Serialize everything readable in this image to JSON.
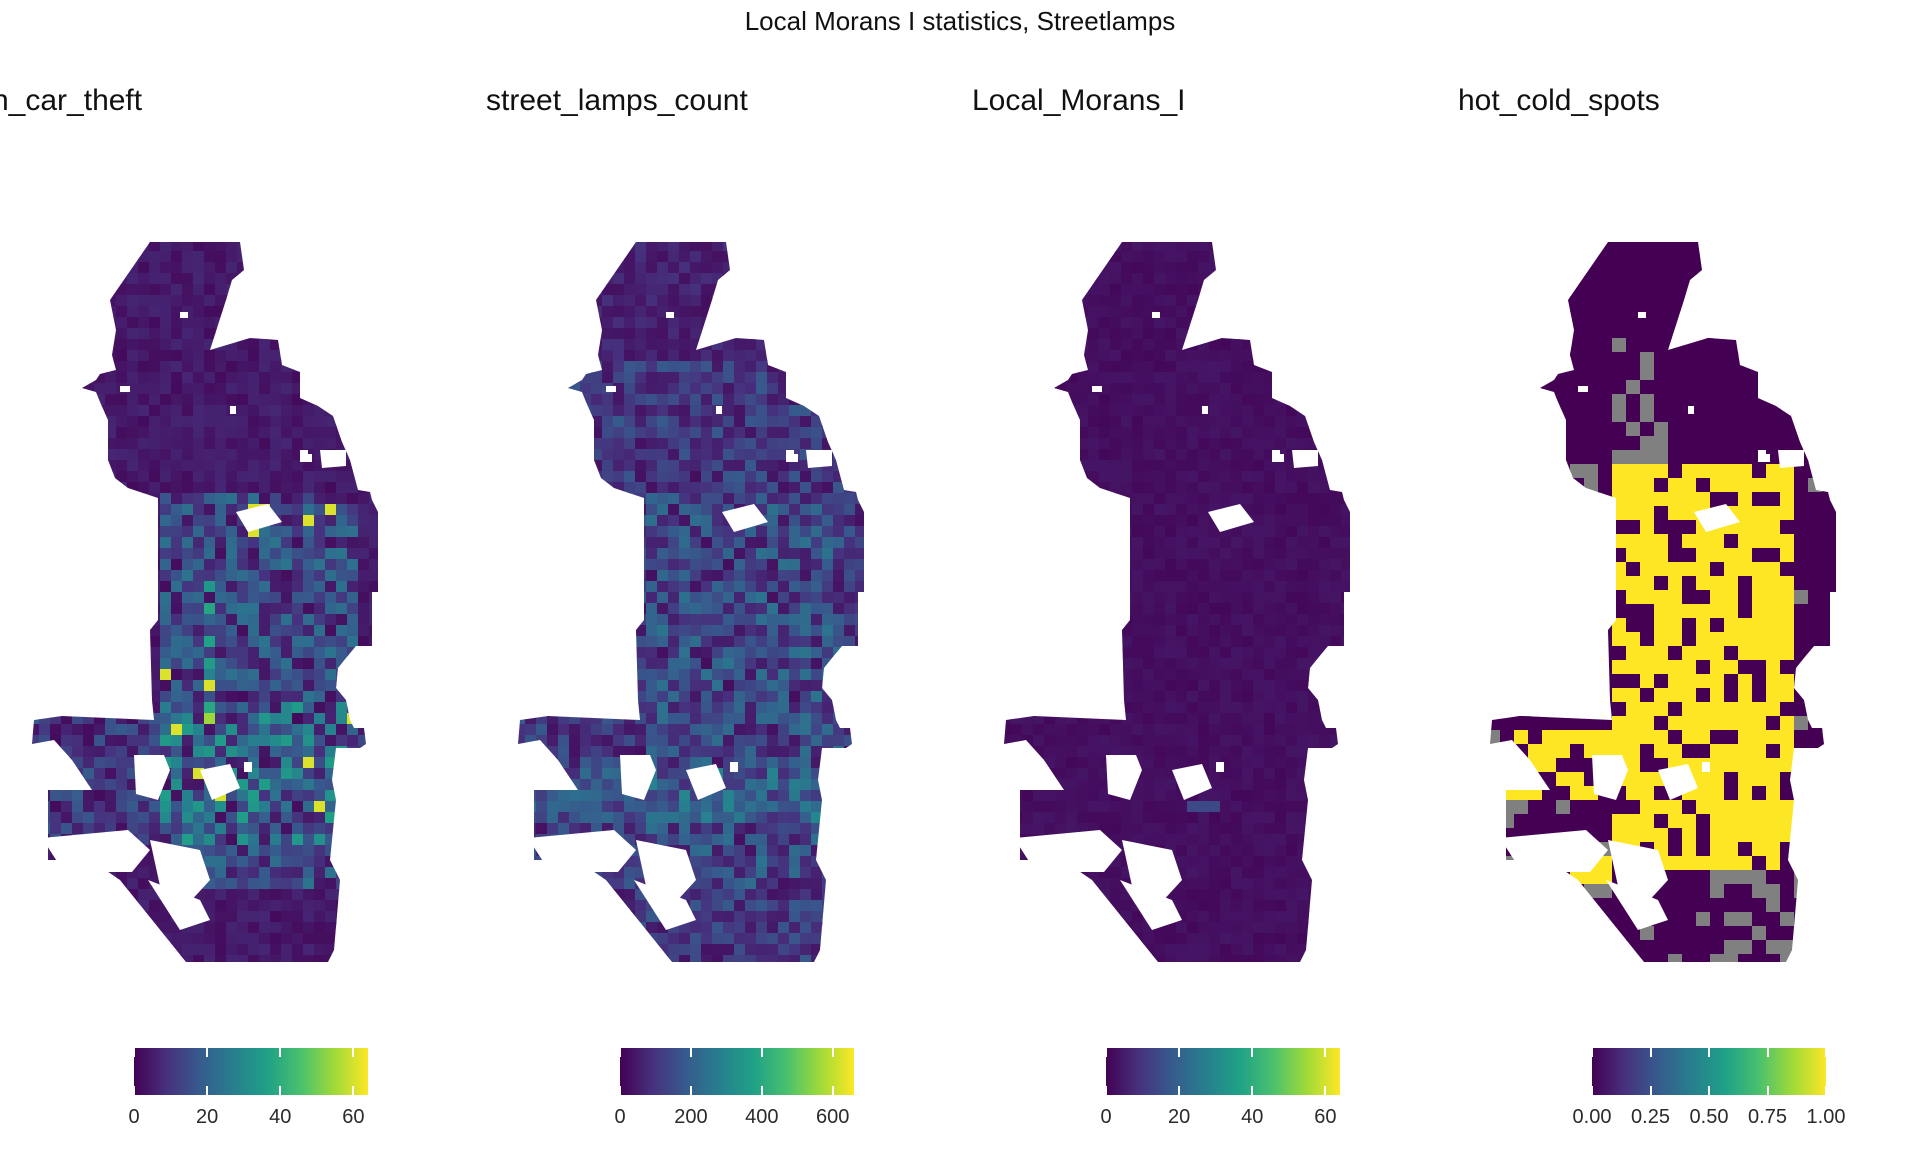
{
  "title": "Local Morans I statistics, Streetlamps",
  "palette": {
    "viridis": [
      "#440154",
      "#46327e",
      "#365c8d",
      "#277f8e",
      "#1fa187",
      "#4ac16d",
      "#a0da39",
      "#fde725"
    ],
    "hot_spot": "#fde725",
    "cold_spot": "#440154",
    "not_significant": "#808080",
    "background": "#ffffff"
  },
  "panels": [
    {
      "id": "car_theft",
      "title": "n_car_theft",
      "legend": {
        "min": 0,
        "max": 64,
        "ticks": [
          {
            "value": 0,
            "label": "0"
          },
          {
            "value": 20,
            "label": "20"
          },
          {
            "value": 40,
            "label": "40"
          },
          {
            "value": 60,
            "label": "60"
          }
        ]
      }
    },
    {
      "id": "street_lamps",
      "title": "street_lamps_count",
      "legend": {
        "min": 0,
        "max": 660,
        "ticks": [
          {
            "value": 0,
            "label": "0"
          },
          {
            "value": 200,
            "label": "200"
          },
          {
            "value": 400,
            "label": "400"
          },
          {
            "value": 600,
            "label": "600"
          }
        ]
      }
    },
    {
      "id": "local_morans",
      "title": "Local_Morans_I",
      "legend": {
        "min": 0,
        "max": 64,
        "ticks": [
          {
            "value": 0,
            "label": "0"
          },
          {
            "value": 20,
            "label": "20"
          },
          {
            "value": 40,
            "label": "40"
          },
          {
            "value": 60,
            "label": "60"
          }
        ]
      }
    },
    {
      "id": "hot_cold",
      "title": "hot_cold_spots",
      "legend": {
        "min": 0,
        "max": 1,
        "ticks": [
          {
            "value": 0,
            "label": "0.00"
          },
          {
            "value": 0.25,
            "label": "0.25"
          },
          {
            "value": 0.5,
            "label": "0.50"
          },
          {
            "value": 0.75,
            "label": "0.75"
          },
          {
            "value": 1,
            "label": "1.00"
          }
        ]
      }
    }
  ]
}
